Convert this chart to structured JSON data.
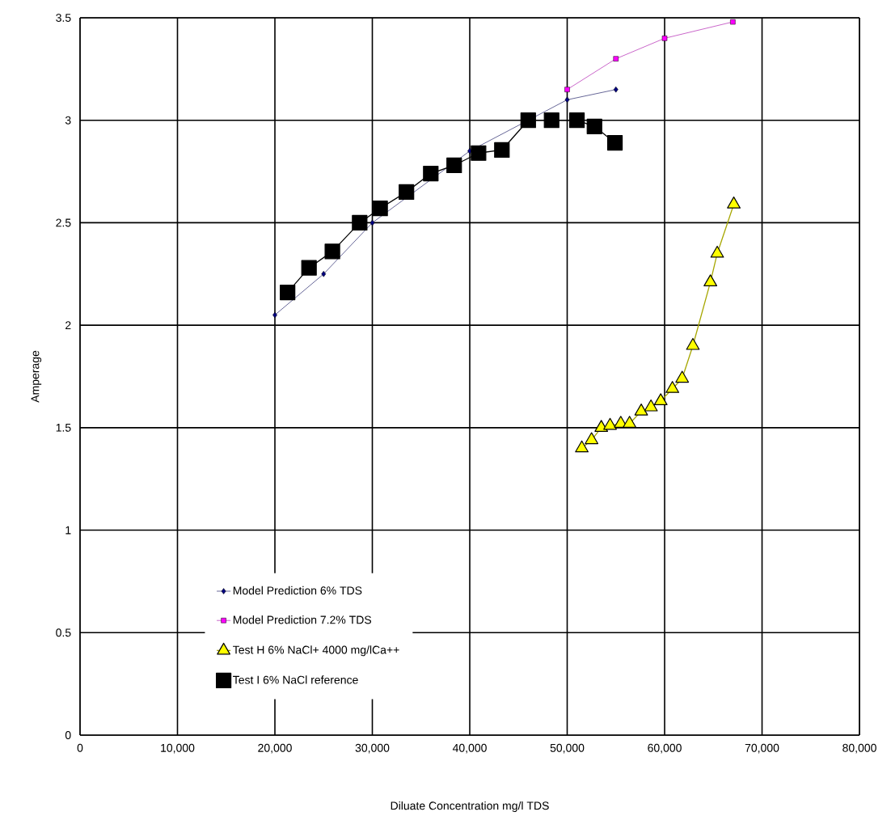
{
  "chart_data": {
    "type": "line",
    "xlabel": "Diluate Concentration mg/l TDS",
    "ylabel": "Amperage",
    "xlim": [
      0,
      80000
    ],
    "ylim": [
      0,
      3.5
    ],
    "xticks": [
      0,
      {
        "value": 10000,
        "label": "10,000"
      },
      {
        "value": 20000,
        "label": "20,000"
      },
      {
        "value": 30000,
        "label": "30,000"
      },
      {
        "value": 40000,
        "label": "40,000"
      },
      {
        "value": 50000,
        "label": "50,000"
      },
      {
        "value": 60000,
        "label": "60,000"
      },
      {
        "value": 70000,
        "label": "70,000"
      },
      {
        "value": 80000,
        "label": "80,000"
      }
    ],
    "yticks": [
      0,
      0.5,
      1,
      1.5,
      2,
      2.5,
      3,
      3.5
    ],
    "grid": true,
    "legend": "bottom",
    "series": [
      {
        "name": "Model Prediction 6% TDS",
        "color": "#000080",
        "marker": "diamond",
        "x": [
          20000,
          25000,
          30000,
          40000,
          50000,
          55000
        ],
        "values": [
          2.05,
          2.25,
          2.5,
          2.85,
          3.1,
          3.15
        ]
      },
      {
        "name": "Model Prediction 7.2% TDS",
        "color": "#ff00ff",
        "marker": "square",
        "x": [
          50000,
          55000,
          60000,
          67000
        ],
        "values": [
          3.15,
          3.3,
          3.4,
          3.48
        ]
      },
      {
        "name": "Test H 6% NaCl+ 4000 mg/lCa++",
        "color": "#ffff00",
        "marker": "triangle",
        "x": [
          51500,
          52500,
          53500,
          54400,
          55500,
          56400,
          57600,
          58600,
          59600,
          60800,
          61800,
          62900,
          64700,
          65400,
          67100
        ],
        "values": [
          1.4,
          1.44,
          1.5,
          1.51,
          1.52,
          1.52,
          1.58,
          1.6,
          1.63,
          1.69,
          1.74,
          1.9,
          2.21,
          2.35,
          2.59
        ]
      },
      {
        "name": "Test I 6% NaCl reference",
        "color": "#000000",
        "marker": "square",
        "x": [
          21300,
          23500,
          25900,
          28700,
          30800,
          33500,
          36000,
          38400,
          40900,
          43300,
          46000,
          48400,
          51000,
          52800,
          54900
        ],
        "values": [
          2.16,
          2.28,
          2.36,
          2.5,
          2.57,
          2.65,
          2.74,
          2.78,
          2.84,
          2.855,
          3.0,
          3.0,
          3.0,
          2.97,
          2.89
        ]
      }
    ]
  }
}
